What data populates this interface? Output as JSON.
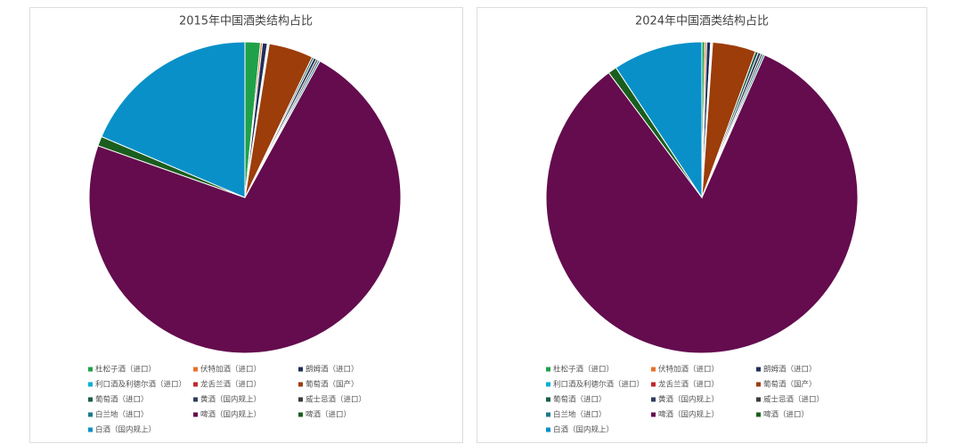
{
  "chart_data": [
    {
      "type": "pie",
      "title": "2015年中国酒类结构占比",
      "categories": [
        "杜松子酒（进口）",
        "伏特加酒（进口）",
        "朗姆酒（进口）",
        "利口酒及利德尔酒（进口）",
        "龙舌兰酒（进口）",
        "葡萄酒（国产）",
        "葡萄酒（进口）",
        "黄酒（国内规上）",
        "威士忌酒（进口）",
        "白兰地（进口）",
        "啤酒（国内规上）",
        "啤酒（进口）",
        "白酒（国内规上）"
      ],
      "values": [
        1.6,
        0.2,
        0.5,
        0.1,
        0.1,
        4.6,
        0.2,
        0.3,
        0.2,
        0.2,
        72.4,
        1.0,
        18.6
      ],
      "colors": [
        "#1fa14a",
        "#e8702a",
        "#1f2f5a",
        "#00b0d8",
        "#c0282d",
        "#9c3d0a",
        "#1a5c4a",
        "#2f3e5c",
        "#3b3b3b",
        "#1b7a8a",
        "#640c4e",
        "#1a5e1e",
        "#0a90c8"
      ]
    },
    {
      "type": "pie",
      "title": "2024年中国酒类结构占比",
      "categories": [
        "杜松子酒（进口）",
        "伏特加酒（进口）",
        "朗姆酒（进口）",
        "利口酒及利德尔酒（进口）",
        "龙舌兰酒（进口）",
        "葡萄酒（国产）",
        "葡萄酒（进口）",
        "黄酒（国内规上）",
        "威士忌酒（进口）",
        "白兰地（进口）",
        "啤酒（国内规上）",
        "啤酒（进口）",
        "白酒（国内规上）"
      ],
      "values": [
        0.3,
        0.2,
        0.4,
        0.1,
        0.1,
        4.5,
        0.3,
        0.3,
        0.2,
        0.2,
        83.2,
        0.9,
        9.3
      ],
      "colors": [
        "#1fa14a",
        "#e8702a",
        "#1f2f5a",
        "#00b0d8",
        "#c0282d",
        "#9c3d0a",
        "#1a5c4a",
        "#2f3e5c",
        "#3b3b3b",
        "#1b7a8a",
        "#640c4e",
        "#1a5e1e",
        "#0a90c8"
      ]
    }
  ]
}
